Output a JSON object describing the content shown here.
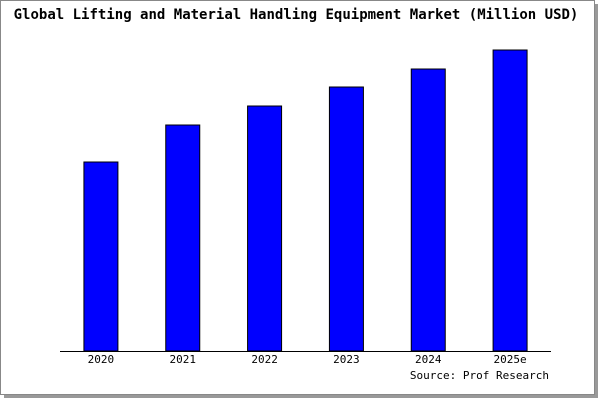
{
  "chart_data": {
    "type": "bar",
    "title": "Global Lifting and Material Handling Equipment Market (Million USD)",
    "categories": [
      "2020",
      "2021",
      "2022",
      "2023",
      "2024",
      "2025e"
    ],
    "values": [
      189,
      226,
      245,
      264,
      282,
      301
    ],
    "color": "#0000ff",
    "ylim": [
      0,
      306
    ],
    "source": "Source: Prof Research"
  }
}
